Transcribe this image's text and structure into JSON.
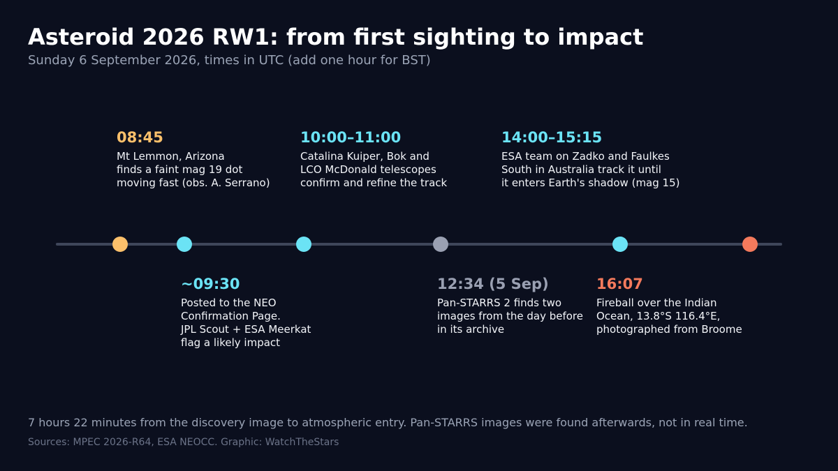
{
  "header": {
    "title": "Asteroid 2026 RW1: from first sighting to impact",
    "subtitle": "Sunday 6 September 2026, times in UTC (add one hour for BST)"
  },
  "timeline": {
    "dots": [
      {
        "color": "#fcc06b"
      },
      {
        "color": "#6be3f5"
      },
      {
        "color": "#6be3f5"
      },
      {
        "color": "#9aa0b2"
      },
      {
        "color": "#6be3f5"
      },
      {
        "color": "#f47a5c"
      }
    ],
    "events_above": [
      {
        "time": "08:45",
        "color": "#fcc06b",
        "lines": [
          "Mt Lemmon, Arizona",
          "finds a faint mag 19 dot",
          "moving fast (obs. A. Serrano)"
        ]
      },
      {
        "time": "10:00–11:00",
        "color": "#6be3f5",
        "lines": [
          "Catalina Kuiper, Bok and",
          "LCO McDonald telescopes",
          "confirm and refine the track"
        ]
      },
      {
        "time": "14:00–15:15",
        "color": "#6be3f5",
        "lines": [
          "ESA team on Zadko and Faulkes",
          "South in Australia track it until",
          "it enters Earth's shadow (mag 15)"
        ]
      }
    ],
    "events_below": [
      {
        "time": "~09:30",
        "color": "#6be3f5",
        "lines": [
          "Posted to the NEO",
          "Confirmation Page.",
          "JPL Scout + ESA Meerkat",
          "flag a likely impact"
        ]
      },
      {
        "time": "12:34 (5 Sep)",
        "color": "#9aa0b2",
        "lines": [
          "Pan-STARRS 2 finds two",
          "images from the day before",
          "in its archive"
        ]
      },
      {
        "time": "16:07",
        "color": "#f47a5c",
        "lines": [
          "Fireball over the Indian",
          "Ocean, 13.8°S 116.4°E,",
          "photographed from Broome"
        ]
      }
    ]
  },
  "footer": {
    "note": "7 hours 22 minutes from the discovery image to atmospheric entry. Pan-STARRS images were found afterwards, not in real time.",
    "sources": "Sources: MPEC 2026-R64, ESA NEOCC. Graphic: WatchTheStars"
  }
}
